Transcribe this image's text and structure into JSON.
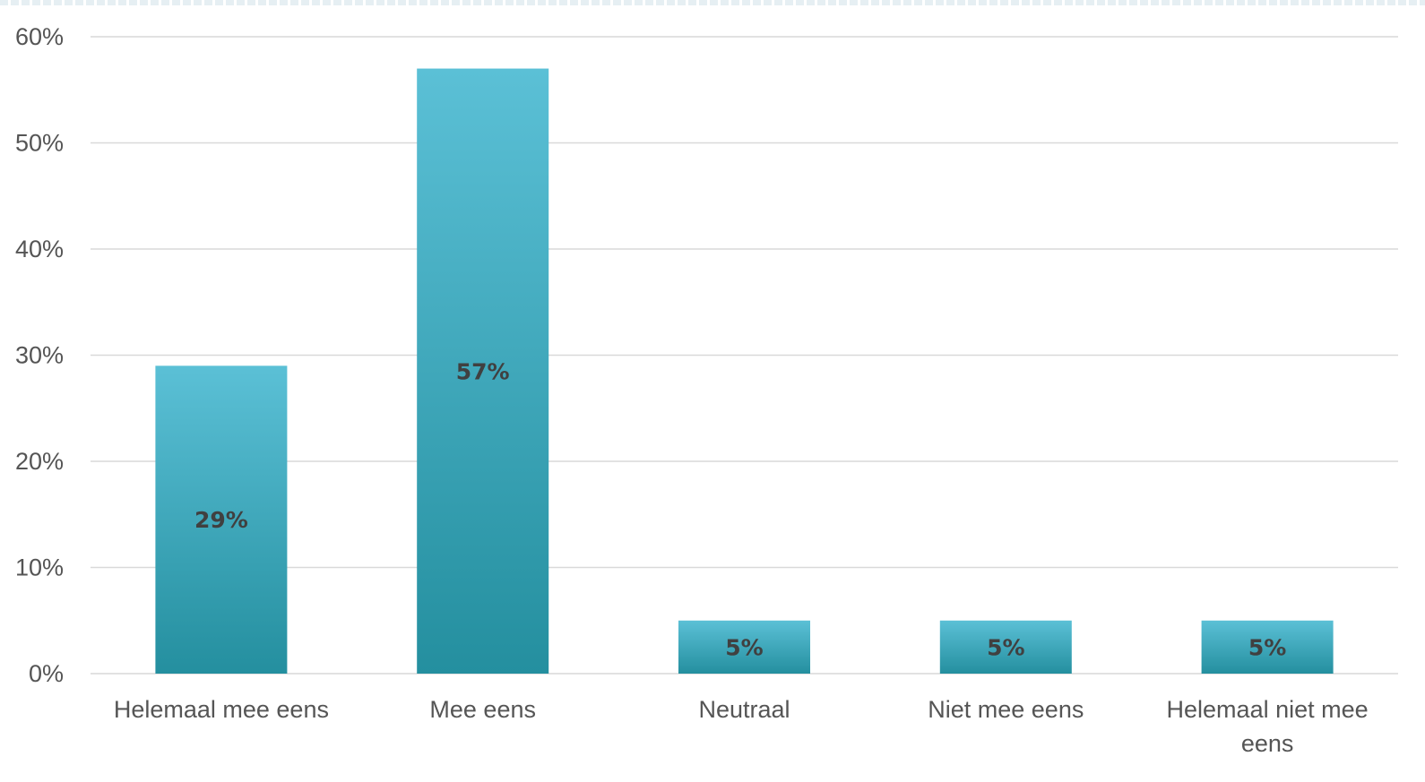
{
  "colors": {
    "bar_top": "#5bc0d6",
    "bar_bottom": "#248f9f",
    "gridline": "#d9d9d9",
    "axis_text": "#555555",
    "data_label_text": "#404040"
  },
  "chart_data": {
    "type": "bar",
    "title": "",
    "xlabel": "",
    "ylabel": "",
    "categories": [
      "Helemaal mee eens",
      "Mee eens",
      "Neutraal",
      "Niet mee eens",
      "Helemaal niet mee eens"
    ],
    "values": [
      29,
      57,
      5,
      5,
      5
    ],
    "data_labels": [
      "29%",
      "57%",
      "5%",
      "5%",
      "5%"
    ],
    "ylim": [
      0,
      60
    ],
    "y_ticks": [
      "0%",
      "10%",
      "20%",
      "30%",
      "40%",
      "50%",
      "60%"
    ],
    "y_tick_values": [
      0,
      10,
      20,
      30,
      40,
      50,
      60
    ],
    "grid": true,
    "legend": "none"
  }
}
